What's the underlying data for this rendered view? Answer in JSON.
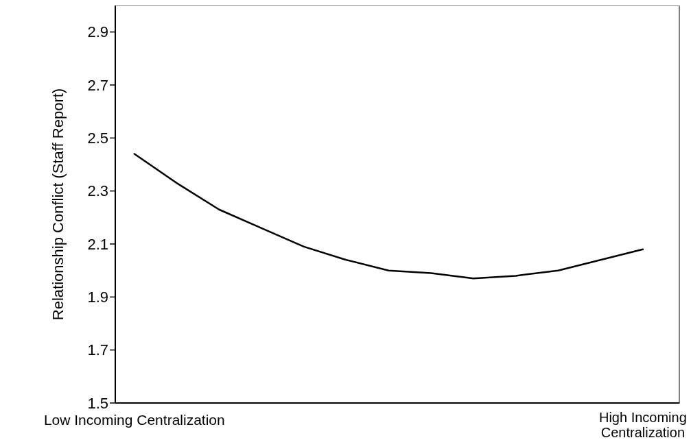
{
  "chart_data": {
    "type": "line",
    "ylabel": "Relationship Conflict (Staff Report)",
    "categories": [
      "Low Incoming Centralization",
      null,
      null,
      null,
      null,
      null,
      null,
      null,
      null,
      null,
      null,
      null,
      "High Incoming Centralization"
    ],
    "series": [
      {
        "color": "#000000",
        "values": [
          2.44,
          2.33,
          2.23,
          2.16,
          2.09,
          2.04,
          2.0,
          1.99,
          1.97,
          1.98,
          2.0,
          2.04,
          2.08
        ]
      }
    ],
    "ylim": [
      1.5,
      3.0
    ],
    "yticks": [
      1.5,
      1.7,
      1.9,
      2.1,
      2.3,
      2.5,
      2.7,
      2.9
    ],
    "grid": false,
    "legend": false,
    "marker": "none",
    "line_style": "solid"
  }
}
